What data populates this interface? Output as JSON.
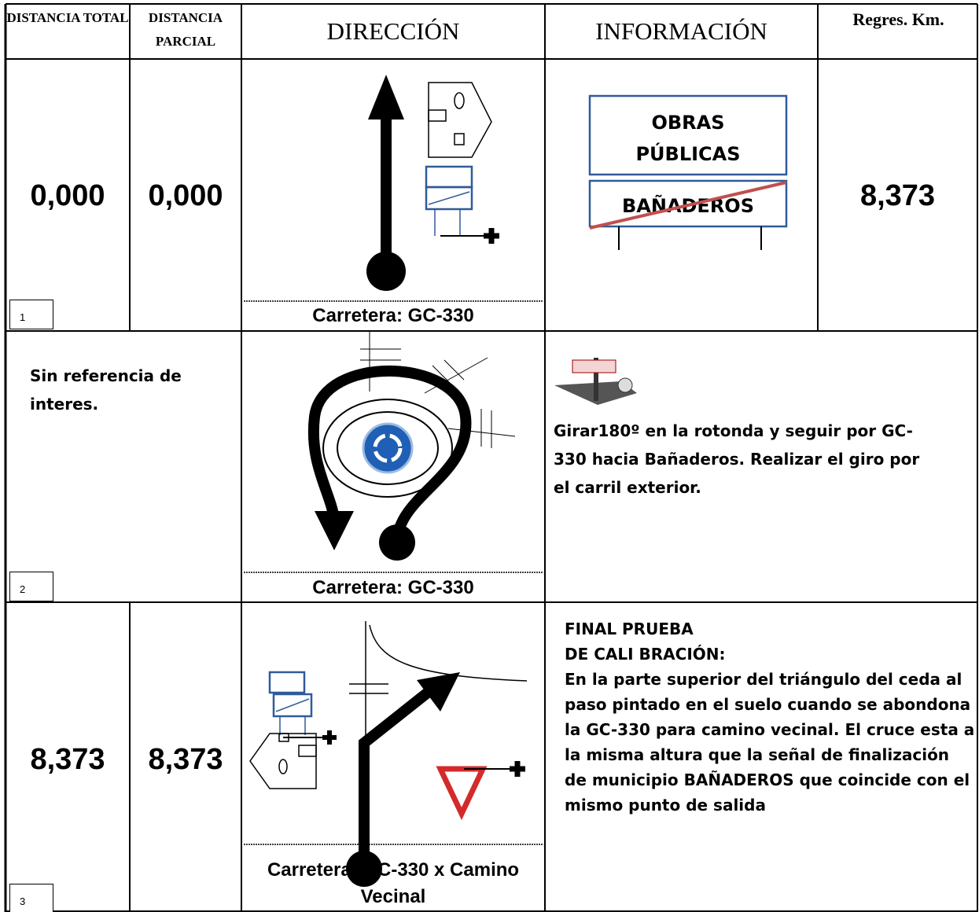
{
  "header": {
    "columns": [
      "DISTANCIA TOTAL",
      "DISTANCIA PARCIAL",
      "DIRECCIÓN",
      "INFORMACIÓN",
      "Regres. Km."
    ]
  },
  "rows": [
    {
      "number": "1",
      "total": "0,000",
      "partial": "0,000",
      "road": "Carretera: GC-330",
      "sign": {
        "lines": [
          "OBRAS",
          "PÚBLICAS"
        ],
        "crossed": "BAÑADEROS"
      },
      "remaining": "8,373"
    },
    {
      "number": "2",
      "note": "Sin referencia de interes.",
      "road": "Carretera: GC-330",
      "info": "Girar180º en la rotonda y seguir por GC-330 hacia Bañaderos.  Realizar el giro por el carril exterior."
    },
    {
      "number": "3",
      "total": "8,373",
      "partial": "8,373",
      "road": "Carretera: GC-330 x Camino Vecinal",
      "info_title": [
        "FINAL PRUEBA",
        "DE CALI BRACIÓN:"
      ],
      "info": "En la parte superior del triángulo del ceda al paso pintado en el suelo cuando se abondona la GC-330 para camino vecinal. El cruce esta a la misma altura que la señal de finalización de municipio BAÑADEROS que coincide con el mismo punto de salida"
    }
  ]
}
